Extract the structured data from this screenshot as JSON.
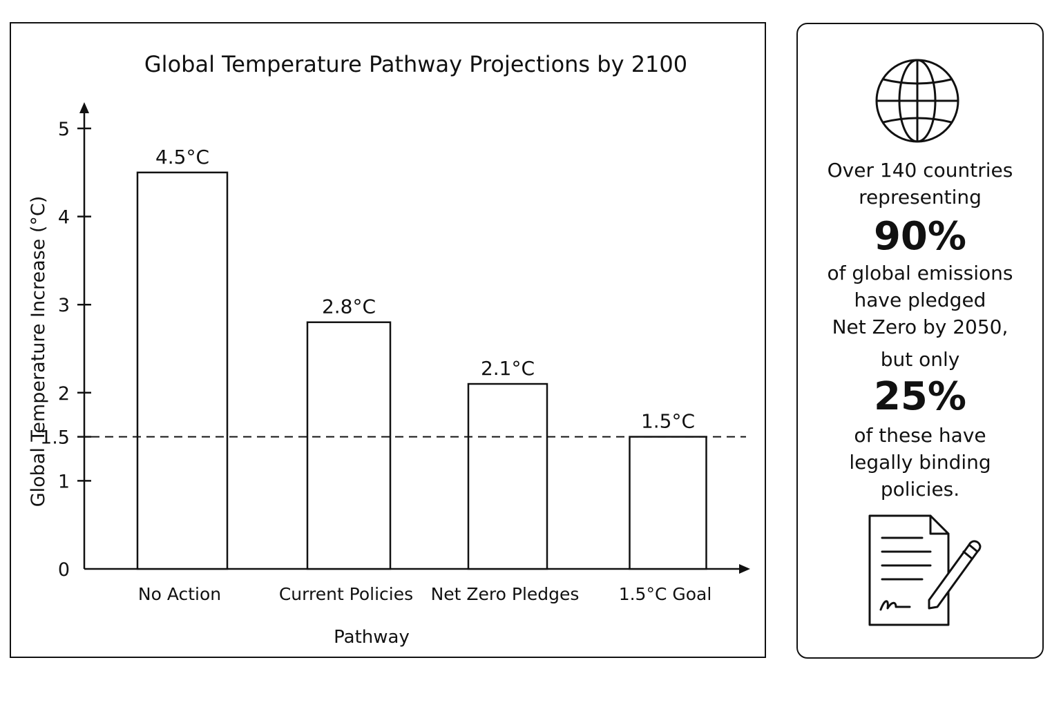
{
  "chart_data": {
    "type": "bar",
    "title": "Global Temperature Pathway Projections by 2100",
    "xlabel": "Pathway",
    "ylabel": "Global Temperature Increase (°C)",
    "categories": [
      "No Action",
      "Current Policies",
      "Net Zero Pledges",
      "1.5°C Goal"
    ],
    "values": [
      4.5,
      2.8,
      2.1,
      1.5
    ],
    "value_labels": [
      "4.5°C",
      "2.8°C",
      "2.1°C",
      "1.5°C"
    ],
    "y_ticks": [
      0,
      1,
      1.5,
      2,
      3,
      4,
      5
    ],
    "y_tick_labels": [
      "0",
      "1",
      "1.5",
      "2",
      "3",
      "4",
      "5"
    ],
    "ylim": [
      0,
      5
    ],
    "reference_line": {
      "value": 1.5,
      "style": "dashed"
    },
    "grid": false,
    "bar_fill": "#ffffff",
    "bar_stroke": "#111111"
  },
  "info_card": {
    "icon_top": "globe-icon",
    "text_1": "Over 140 countries",
    "text_2": "representing",
    "stat_1": "90%",
    "text_3": "of global emissions",
    "text_4": "have pledged",
    "text_5": "Net Zero by 2050,",
    "text_6": "but only",
    "stat_2": "25%",
    "text_7": "of these have",
    "text_8": "legally binding",
    "text_9": "policies.",
    "icon_bottom": "signed-document-icon"
  }
}
